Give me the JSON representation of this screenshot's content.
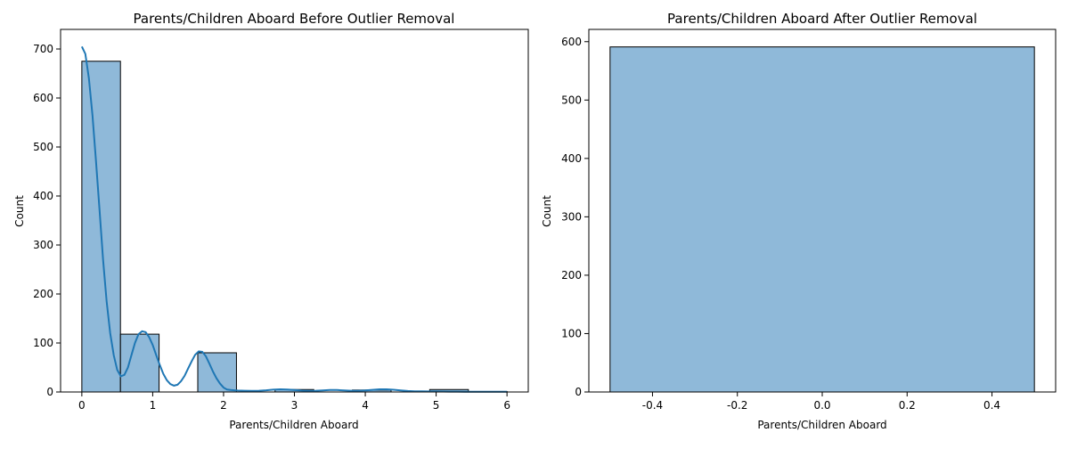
{
  "colors": {
    "bar_fill": "#8fb9d9",
    "bar_edge": "#000000",
    "kde_line": "#1f77b4",
    "axis": "#000000"
  },
  "chart_data": [
    {
      "type": "bar",
      "title": "Parents/Children Aboard Before Outlier Removal",
      "xlabel": "Parents/Children Aboard",
      "ylabel": "Count",
      "xlim": [
        -0.3,
        6.3
      ],
      "ylim": [
        0,
        740
      ],
      "xticks": [
        0,
        1,
        2,
        3,
        4,
        5,
        6
      ],
      "xtick_labels": [
        "0",
        "1",
        "2",
        "3",
        "4",
        "5",
        "6"
      ],
      "yticks": [
        0,
        100,
        200,
        300,
        400,
        500,
        600,
        700
      ],
      "ytick_labels": [
        "0",
        "100",
        "200",
        "300",
        "400",
        "500",
        "600",
        "700"
      ],
      "bins": [
        {
          "x0": 0.0,
          "x1": 0.545,
          "value": 675
        },
        {
          "x0": 0.545,
          "x1": 1.09,
          "value": 118
        },
        {
          "x0": 1.09,
          "x1": 1.636,
          "value": 0
        },
        {
          "x0": 1.636,
          "x1": 2.182,
          "value": 80
        },
        {
          "x0": 2.182,
          "x1": 2.727,
          "value": 0
        },
        {
          "x0": 2.727,
          "x1": 3.273,
          "value": 5
        },
        {
          "x0": 3.273,
          "x1": 3.818,
          "value": 0
        },
        {
          "x0": 3.818,
          "x1": 4.364,
          "value": 4
        },
        {
          "x0": 4.364,
          "x1": 4.909,
          "value": 0
        },
        {
          "x0": 4.909,
          "x1": 5.455,
          "value": 5
        },
        {
          "x0": 5.455,
          "x1": 6.0,
          "value": 1
        }
      ],
      "kde": {
        "x": [
          0,
          0.05,
          0.1,
          0.15,
          0.2,
          0.25,
          0.3,
          0.35,
          0.4,
          0.45,
          0.5,
          0.55,
          0.6,
          0.65,
          0.7,
          0.75,
          0.8,
          0.85,
          0.9,
          0.95,
          1.0,
          1.05,
          1.1,
          1.15,
          1.2,
          1.25,
          1.3,
          1.35,
          1.4,
          1.45,
          1.5,
          1.55,
          1.6,
          1.65,
          1.7,
          1.75,
          1.8,
          1.85,
          1.9,
          1.95,
          2.0,
          2.05,
          2.1,
          2.15,
          2.2,
          2.3,
          2.4,
          2.5,
          2.6,
          2.7,
          2.8,
          2.9,
          3.0,
          3.1,
          3.2,
          3.3,
          3.4,
          3.5,
          3.6,
          3.7,
          3.8,
          3.9,
          4.0,
          4.1,
          4.2,
          4.3,
          4.4,
          4.5,
          4.6,
          4.7,
          4.8,
          4.9,
          5.0,
          5.1,
          5.2,
          5.3,
          5.4,
          5.5,
          5.6,
          5.7,
          5.8,
          5.9,
          6.0
        ],
        "y": [
          705,
          690,
          640,
          565,
          470,
          370,
          270,
          185,
          120,
          75,
          45,
          32,
          35,
          50,
          75,
          100,
          118,
          124,
          122,
          112,
          96,
          75,
          55,
          37,
          24,
          16,
          13,
          15,
          22,
          33,
          48,
          63,
          76,
          83,
          82,
          73,
          58,
          42,
          28,
          17,
          9,
          5,
          4,
          3.5,
          3,
          2.5,
          2.2,
          2.5,
          3.5,
          4.8,
          5.5,
          5,
          4,
          3,
          2.2,
          2.5,
          3.3,
          4,
          4,
          3.3,
          2.6,
          2.5,
          3.2,
          4.3,
          5.5,
          5.5,
          4.5,
          3.2,
          2,
          1.5,
          1.2,
          1,
          1,
          0.9,
          0.8,
          0.7,
          0.6,
          0.5,
          0.5,
          0.4,
          0.4,
          0.3,
          0.3
        ]
      }
    },
    {
      "type": "bar",
      "title": "Parents/Children Aboard After Outlier Removal",
      "xlabel": "Parents/Children Aboard",
      "ylabel": "Count",
      "xlim": [
        -0.55,
        0.55
      ],
      "ylim": [
        0,
        621
      ],
      "xticks": [
        -0.4,
        -0.2,
        0.0,
        0.2,
        0.4
      ],
      "xtick_labels": [
        "-0.4",
        "-0.2",
        "0.0",
        "0.2",
        "0.4"
      ],
      "yticks": [
        0,
        100,
        200,
        300,
        400,
        500,
        600
      ],
      "ytick_labels": [
        "0",
        "100",
        "200",
        "300",
        "400",
        "500",
        "600"
      ],
      "bins": [
        {
          "x0": -0.5,
          "x1": 0.5,
          "value": 591
        }
      ]
    }
  ]
}
